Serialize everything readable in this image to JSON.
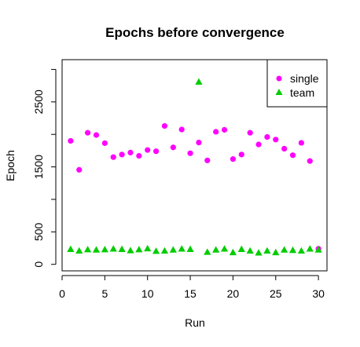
{
  "chart_data": {
    "type": "scatter",
    "title": "Epochs before convergence",
    "xlabel": "Run",
    "ylabel": "Epoch",
    "xlim": [
      0,
      31
    ],
    "ylim": [
      -100,
      3150
    ],
    "x_ticks": [
      0,
      5,
      10,
      15,
      20,
      25,
      30
    ],
    "y_ticks": [
      0,
      500,
      1500,
      2500
    ],
    "grid": false,
    "legend_position": "top-right",
    "x": [
      1,
      2,
      3,
      4,
      5,
      6,
      7,
      8,
      9,
      10,
      11,
      12,
      13,
      14,
      15,
      16,
      17,
      18,
      19,
      20,
      21,
      22,
      23,
      24,
      25,
      26,
      27,
      28,
      29,
      30
    ],
    "series": [
      {
        "name": "single",
        "color": "#ff00ff",
        "marker": "circle",
        "values": [
          1900,
          1455,
          2025,
          1990,
          1865,
          1650,
          1690,
          1720,
          1670,
          1760,
          1740,
          2130,
          1800,
          2075,
          1710,
          1875,
          1600,
          2040,
          2070,
          1620,
          1690,
          2025,
          1845,
          1960,
          1920,
          1780,
          1680,
          1870,
          1590,
          240
        ]
      },
      {
        "name": "team",
        "color": "#00cd00",
        "marker": "triangle",
        "values": [
          235,
          210,
          230,
          225,
          230,
          240,
          235,
          215,
          230,
          245,
          205,
          210,
          225,
          240,
          235,
          2810,
          190,
          225,
          240,
          185,
          235,
          210,
          180,
          210,
          185,
          225,
          220,
          210,
          240,
          225
        ]
      }
    ]
  }
}
